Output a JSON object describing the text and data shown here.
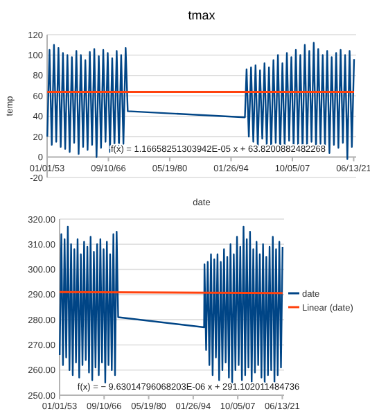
{
  "chart_data": [
    {
      "type": "line",
      "title": "tmax",
      "xlabel": "date",
      "ylabel": "temp",
      "grid": "y",
      "legend": false,
      "xlim": [
        "1953-01-01",
        "2021-12-31"
      ],
      "ylim": [
        -20,
        120
      ],
      "yticks": [
        -20,
        0,
        20,
        40,
        60,
        80,
        100,
        120
      ],
      "xticks": [
        {
          "value": "1953-01-01",
          "label": "01/01/53"
        },
        {
          "value": "1966-09-10",
          "label": "09/10/66"
        },
        {
          "value": "1980-05-19",
          "label": "05/19/80"
        },
        {
          "value": "1994-01-26",
          "label": "01/26/94"
        },
        {
          "value": "2007-10-05",
          "label": "10/05/07"
        },
        {
          "value": "2021-06-13",
          "label": "06/13/21"
        }
      ],
      "annotations": [
        "f(x) = 1.16658251303942E-05 x + 63.8200882482268"
      ],
      "series": [
        {
          "color": "#004586",
          "x": [
            "1953-01-15",
            "1953-07-15",
            "1954-01-15",
            "1954-07-15",
            "1955-01-15",
            "1955-07-15",
            "1956-01-15",
            "1956-07-15",
            "1957-01-15",
            "1957-07-15",
            "1958-01-15",
            "1958-07-15",
            "1959-01-15",
            "1959-07-15",
            "1960-01-15",
            "1960-07-15",
            "1961-01-15",
            "1961-07-15",
            "1962-01-15",
            "1962-07-15",
            "1963-01-15",
            "1963-07-15",
            "1964-01-15",
            "1964-07-15",
            "1965-01-15",
            "1965-07-15",
            "1966-01-15",
            "1966-07-15",
            "1967-01-15",
            "1967-07-15",
            "1968-01-15",
            "1968-07-15",
            "1969-01-15",
            "1969-07-15",
            "1970-01-15",
            "1970-07-15",
            "1971-01-01",
            "1997-03-01",
            "1997-07-15",
            "1998-01-15",
            "1998-07-15",
            "1999-01-15",
            "1999-07-15",
            "2000-01-15",
            "2000-07-15",
            "2001-01-15",
            "2001-07-15",
            "2002-01-15",
            "2002-07-15",
            "2003-01-15",
            "2003-07-15",
            "2004-01-15",
            "2004-07-15",
            "2005-01-15",
            "2005-07-15",
            "2006-01-15",
            "2006-07-15",
            "2007-01-15",
            "2007-07-15",
            "2008-01-15",
            "2008-07-15",
            "2009-01-15",
            "2009-07-15",
            "2010-01-15",
            "2010-07-15",
            "2011-01-15",
            "2011-07-15",
            "2012-01-15",
            "2012-07-15",
            "2013-01-15",
            "2013-07-15",
            "2014-01-15",
            "2014-07-15",
            "2015-01-15",
            "2015-07-15",
            "2016-01-15",
            "2016-07-15",
            "2017-01-15",
            "2017-07-15",
            "2018-01-15",
            "2018-07-15",
            "2019-01-15",
            "2019-07-15",
            "2020-01-15",
            "2020-07-15",
            "2021-01-15",
            "2021-07-15"
          ],
          "values": [
            20,
            105,
            12,
            110,
            15,
            107,
            10,
            102,
            8,
            100,
            5,
            98,
            14,
            104,
            3,
            100,
            10,
            95,
            7,
            103,
            12,
            106,
            0,
            99,
            9,
            105,
            15,
            102,
            5,
            97,
            11,
            104,
            8,
            100,
            13,
            107,
            45,
            39,
            86,
            20,
            88,
            15,
            90,
            10,
            85,
            18,
            92,
            12,
            88,
            8,
            95,
            14,
            100,
            5,
            92,
            10,
            102,
            16,
            98,
            9,
            105,
            12,
            100,
            6,
            110,
            11,
            104,
            15,
            112,
            8,
            106,
            13,
            100,
            10,
            104,
            4,
            98,
            12,
            102,
            9,
            105,
            14,
            100,
            -2,
            104,
            10,
            96
          ]
        },
        {
          "type": "line",
          "color": "#ff420e",
          "x": [
            "1953-01-15",
            "2021-07-15"
          ],
          "values": [
            64,
            64
          ]
        }
      ]
    },
    {
      "type": "line",
      "grid": "y",
      "legend": "right",
      "xlim": [
        "1953-01-01",
        "2021-12-31"
      ],
      "ylim": [
        250,
        320
      ],
      "yticks": [
        {
          "value": 250,
          "label": "250.00"
        },
        {
          "value": 260,
          "label": "260.00"
        },
        {
          "value": 270,
          "label": "270.00"
        },
        {
          "value": 280,
          "label": "280.00"
        },
        {
          "value": 290,
          "label": "290.00"
        },
        {
          "value": 300,
          "label": "300.00"
        },
        {
          "value": 310,
          "label": "310.00"
        },
        {
          "value": 320,
          "label": "320.00"
        }
      ],
      "xticks": [
        {
          "value": "1953-01-01",
          "label": "01/01/53"
        },
        {
          "value": "1966-09-10",
          "label": "09/10/66"
        },
        {
          "value": "1980-05-19",
          "label": "05/19/80"
        },
        {
          "value": "1994-01-26",
          "label": "01/26/94"
        },
        {
          "value": "2007-10-05",
          "label": "10/05/07"
        },
        {
          "value": "2021-06-13",
          "label": "06/13/21"
        }
      ],
      "annotations": [
        "f(x) = − 9.63014796068203E-06 x + 291.102011484736"
      ],
      "series": [
        {
          "name": "date",
          "color": "#004586",
          "x": [
            "1953-01-15",
            "1953-07-15",
            "1954-01-15",
            "1954-07-15",
            "1955-01-15",
            "1955-07-15",
            "1956-01-15",
            "1956-07-15",
            "1957-01-15",
            "1957-07-15",
            "1958-01-15",
            "1958-07-15",
            "1959-01-15",
            "1959-07-15",
            "1960-01-15",
            "1960-07-15",
            "1961-01-15",
            "1961-07-15",
            "1962-01-15",
            "1962-07-15",
            "1963-01-15",
            "1963-07-15",
            "1964-01-15",
            "1964-07-15",
            "1965-01-15",
            "1965-07-15",
            "1966-01-15",
            "1966-07-15",
            "1967-01-15",
            "1967-07-15",
            "1968-01-15",
            "1968-07-15",
            "1969-01-15",
            "1969-07-15",
            "1970-01-15",
            "1970-07-15",
            "1971-01-01",
            "1997-06-01",
            "1997-07-15",
            "1998-01-15",
            "1998-07-15",
            "1999-01-15",
            "1999-07-15",
            "2000-01-15",
            "2000-07-15",
            "2001-01-15",
            "2001-07-15",
            "2002-01-15",
            "2002-07-15",
            "2003-01-15",
            "2003-07-15",
            "2004-01-15",
            "2004-07-15",
            "2005-01-15",
            "2005-07-15",
            "2006-01-15",
            "2006-07-15",
            "2007-01-15",
            "2007-07-15",
            "2008-01-15",
            "2008-07-15",
            "2009-01-15",
            "2009-07-15",
            "2010-01-15",
            "2010-07-15",
            "2011-01-15",
            "2011-07-15",
            "2012-01-15",
            "2012-07-15",
            "2013-01-15",
            "2013-07-15",
            "2014-01-15",
            "2014-07-15",
            "2015-01-15",
            "2015-07-15",
            "2016-01-15",
            "2016-07-15",
            "2017-01-15",
            "2017-07-15",
            "2018-01-15",
            "2018-07-15",
            "2019-01-15",
            "2019-07-15",
            "2020-01-15",
            "2020-07-15",
            "2021-01-15",
            "2021-07-15"
          ],
          "values": [
            266,
            314,
            262,
            312,
            265,
            317,
            260,
            310,
            258,
            308,
            263,
            312,
            257,
            306,
            262,
            311,
            264,
            309,
            259,
            313,
            256,
            307,
            261,
            310,
            258,
            312,
            263,
            308,
            255,
            311,
            262,
            306,
            260,
            314,
            258,
            315,
            281,
            277,
            302,
            268,
            303,
            262,
            306,
            258,
            304,
            265,
            306,
            256,
            303,
            260,
            308,
            263,
            305,
            257,
            310,
            255,
            306,
            260,
            313,
            262,
            309,
            256,
            317,
            258,
            312,
            261,
            315,
            255,
            308,
            259,
            311,
            262,
            306,
            257,
            310,
            255,
            305,
            258,
            309,
            260,
            313,
            255,
            308,
            258,
            311,
            261,
            309
          ]
        },
        {
          "name": "Linear (date)",
          "type": "line",
          "color": "#ff420e",
          "x": [
            "1953-01-15",
            "2021-07-15"
          ],
          "values": [
            291,
            290.6
          ]
        }
      ]
    }
  ]
}
